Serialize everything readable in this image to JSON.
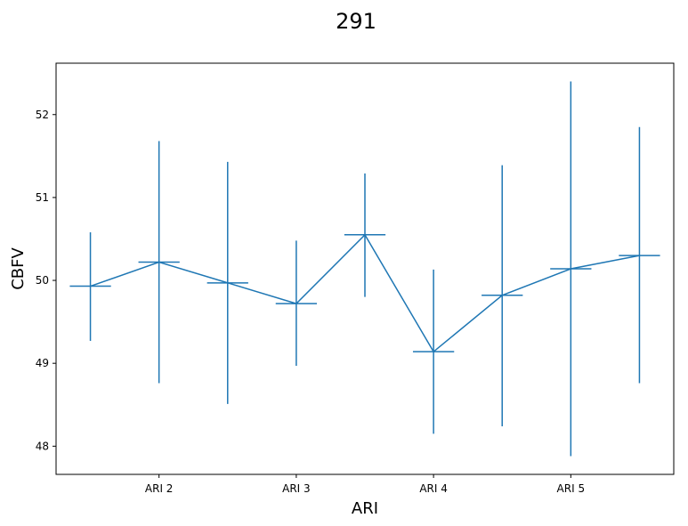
{
  "chart_data": {
    "type": "line",
    "title": "291",
    "xlabel": "ARI",
    "ylabel": "CBFV",
    "x_tick_labels": [
      "ARI 2",
      "ARI 3",
      "ARI 4",
      "ARI 5"
    ],
    "y_tick_labels": [
      "48",
      "49",
      "50",
      "51",
      "52"
    ],
    "ylim": [
      47.66,
      52.62
    ],
    "xlim": [
      0.5,
      9.5
    ],
    "x_tick_positions": [
      2,
      4,
      6,
      8
    ],
    "y_ticks": [
      48,
      49,
      50,
      51,
      52
    ],
    "grid": false,
    "series": [
      {
        "color": "#1f77b4",
        "points": [
          {
            "x": 1,
            "y": 49.93,
            "low": 49.27,
            "high": 50.58
          },
          {
            "x": 2,
            "y": 50.22,
            "low": 48.76,
            "high": 51.68
          },
          {
            "x": 3,
            "y": 49.97,
            "low": 48.51,
            "high": 51.43
          },
          {
            "x": 4,
            "y": 49.72,
            "low": 48.97,
            "high": 50.48
          },
          {
            "x": 5,
            "y": 50.55,
            "low": 49.8,
            "high": 51.29
          },
          {
            "x": 6,
            "y": 49.14,
            "low": 48.15,
            "high": 50.13
          },
          {
            "x": 7,
            "y": 49.82,
            "low": 48.24,
            "high": 51.39
          },
          {
            "x": 8,
            "y": 50.14,
            "low": 47.88,
            "high": 52.4
          },
          {
            "x": 9,
            "y": 50.3,
            "low": 48.76,
            "high": 51.85
          }
        ]
      }
    ]
  }
}
